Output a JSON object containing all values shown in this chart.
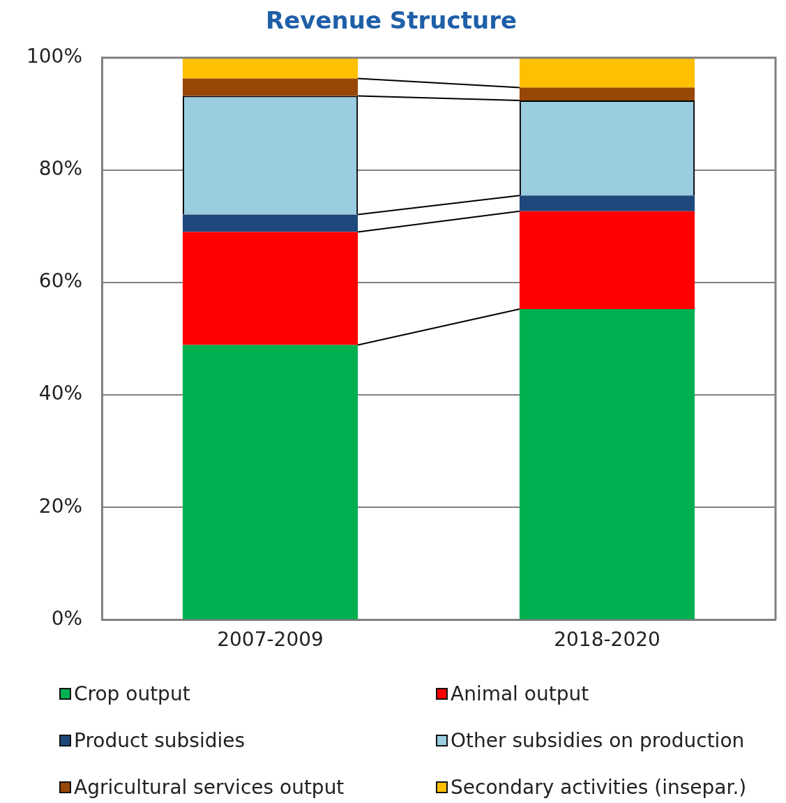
{
  "chart_data": {
    "type": "bar",
    "title": "Revenue Structure",
    "stacked": true,
    "categories": [
      "2007-2009",
      "2018-2020"
    ],
    "series": [
      {
        "name": "Crop output",
        "color": "#00b050",
        "values": [
          48.9,
          55.3
        ]
      },
      {
        "name": "Animal output",
        "color": "#ff0000",
        "values": [
          20.1,
          17.4
        ]
      },
      {
        "name": "Product subsidies",
        "color": "#1f497d",
        "values": [
          3.1,
          2.8
        ]
      },
      {
        "name": "Other subsidies on production",
        "color": "#99cddf",
        "values": [
          21.1,
          16.9
        ]
      },
      {
        "name": "Agricultural services output",
        "color": "#974706",
        "values": [
          3.1,
          2.3
        ]
      },
      {
        "name": "Secondary activities (insepar.)",
        "color": "#ffc000",
        "values": [
          3.7,
          5.3
        ]
      }
    ],
    "ylim": [
      0,
      100
    ],
    "yticks": [
      {
        "value": 0,
        "label": "0%"
      },
      {
        "value": 20,
        "label": "20%"
      },
      {
        "value": 40,
        "label": "40%"
      },
      {
        "value": 60,
        "label": "60%"
      },
      {
        "value": 80,
        "label": "80%"
      },
      {
        "value": 100,
        "label": "100%"
      }
    ],
    "grid": "y",
    "legend": "bottom"
  }
}
